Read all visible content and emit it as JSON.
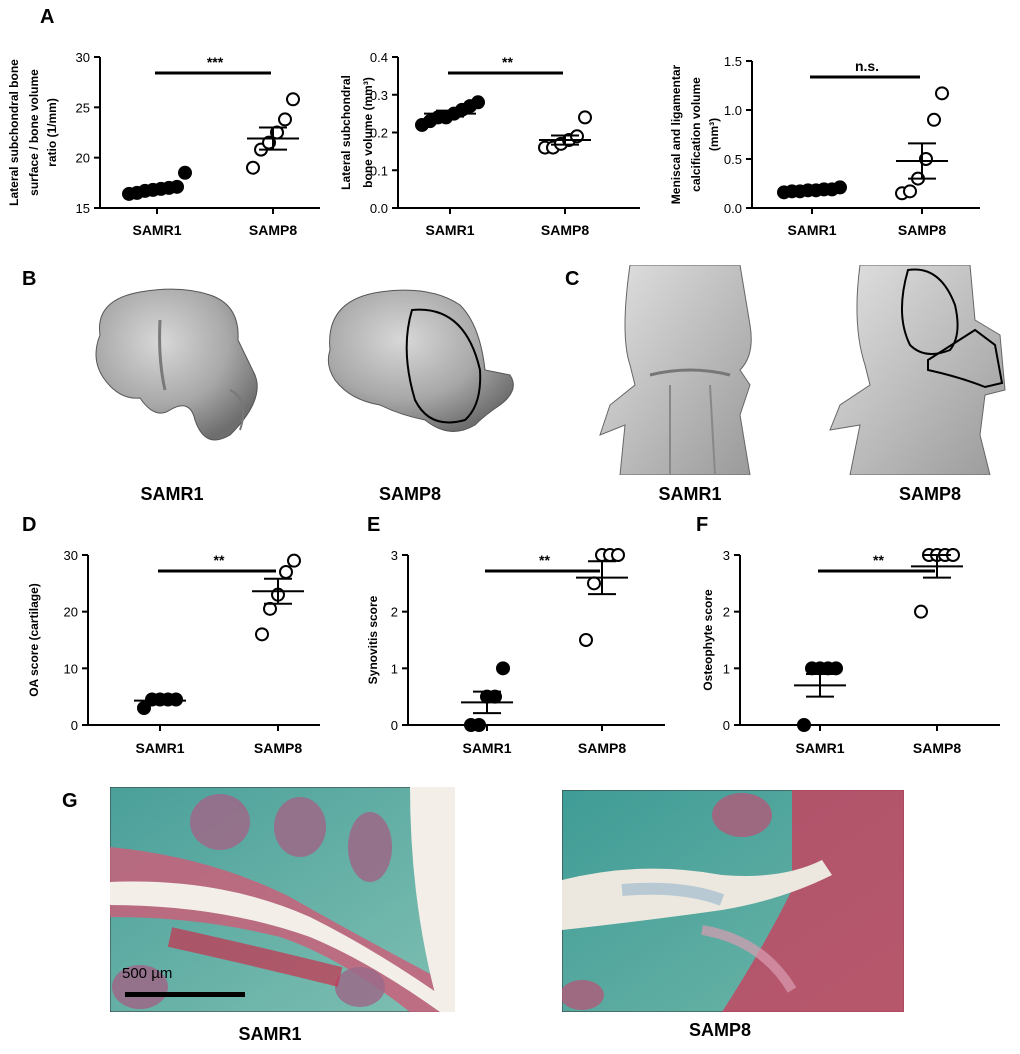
{
  "panel_letters": {
    "A": "A",
    "B": "B",
    "C": "C",
    "D": "D",
    "E": "E",
    "F": "F",
    "G": "G"
  },
  "image_captions": {
    "b_left": "SAMR1",
    "b_right": "SAMP8",
    "c_left": "SAMR1",
    "c_right": "SAMP8",
    "g_left": "SAMR1",
    "g_right": "SAMP8"
  },
  "scale_bar_label": "500 µm",
  "chart_data": [
    {
      "id": "A1",
      "type": "scatter",
      "categories": [
        "SAMR1",
        "SAMP8"
      ],
      "ylabel_lines": [
        "Lateral subchondral bone",
        "surface / bone volume",
        "ratio (1/mm)"
      ],
      "ylim": [
        15,
        30
      ],
      "yticks": [
        15,
        20,
        25,
        30
      ],
      "points": [
        [
          16.4,
          16.5,
          16.7,
          16.8,
          16.9,
          17.0,
          17.1,
          18.5
        ],
        [
          19.0,
          20.8,
          21.5,
          22.5,
          23.8,
          25.8
        ]
      ],
      "mean": [
        16.9,
        21.9
      ],
      "sem": [
        0.25,
        1.1
      ],
      "significance": "***"
    },
    {
      "id": "A2",
      "type": "scatter",
      "categories": [
        "SAMR1",
        "SAMP8"
      ],
      "ylabel_lines": [
        "Lateral subchondral",
        "bone volume (mm³)"
      ],
      "ylim": [
        0,
        0.4
      ],
      "yticks": [
        0.0,
        0.1,
        0.2,
        0.3,
        0.4
      ],
      "points": [
        [
          0.22,
          0.23,
          0.24,
          0.24,
          0.25,
          0.26,
          0.27,
          0.28
        ],
        [
          0.16,
          0.16,
          0.17,
          0.18,
          0.19,
          0.24
        ]
      ],
      "mean": [
        0.25,
        0.18
      ],
      "sem": [
        0.008,
        0.012
      ],
      "significance": "**"
    },
    {
      "id": "A3",
      "type": "scatter",
      "categories": [
        "SAMR1",
        "SAMP8"
      ],
      "ylabel_lines": [
        "Meniscal and ligamentar",
        "calcification volume",
        "(mm³)"
      ],
      "ylim": [
        0,
        1.5
      ],
      "yticks": [
        0.0,
        0.5,
        1.0,
        1.5
      ],
      "points": [
        [
          0.16,
          0.17,
          0.17,
          0.18,
          0.18,
          0.19,
          0.19,
          0.21
        ],
        [
          0.15,
          0.17,
          0.3,
          0.5,
          0.9,
          1.17
        ]
      ],
      "mean": [
        0.18,
        0.48
      ],
      "sem": [
        0.01,
        0.18
      ],
      "significance": "n.s."
    },
    {
      "id": "D",
      "type": "scatter",
      "categories": [
        "SAMR1",
        "SAMP8"
      ],
      "ylabel_lines": [
        "OA score (cartilage)"
      ],
      "ylim": [
        0,
        30
      ],
      "yticks": [
        0,
        10,
        20,
        30
      ],
      "points": [
        [
          3.0,
          4.5,
          4.5,
          4.5,
          4.5
        ],
        [
          16.0,
          20.5,
          23.0,
          27.0,
          29.0
        ]
      ],
      "mean": [
        4.3,
        23.6
      ],
      "sem": [
        0.3,
        2.2
      ],
      "significance": "**"
    },
    {
      "id": "E",
      "type": "scatter",
      "categories": [
        "SAMR1",
        "SAMP8"
      ],
      "ylabel_lines": [
        "Synovitis score"
      ],
      "ylim": [
        0,
        3
      ],
      "yticks": [
        0,
        1,
        2,
        3
      ],
      "points": [
        [
          0,
          0,
          0.5,
          0.5,
          1.0
        ],
        [
          1.5,
          2.5,
          3.0,
          3.0,
          3.0
        ]
      ],
      "mean": [
        0.4,
        2.6
      ],
      "sem": [
        0.19,
        0.29
      ],
      "significance": "**"
    },
    {
      "id": "F",
      "type": "scatter",
      "categories": [
        "SAMR1",
        "SAMP8"
      ],
      "ylabel_lines": [
        "Osteophyte score"
      ],
      "ylim": [
        0,
        3
      ],
      "yticks": [
        0,
        1,
        2,
        3
      ],
      "points": [
        [
          0,
          1,
          1,
          1,
          1
        ],
        [
          2,
          3,
          3,
          3,
          3
        ]
      ],
      "mean": [
        0.7,
        2.8
      ],
      "sem": [
        0.2,
        0.2
      ],
      "significance": "**"
    }
  ],
  "marker_fill": [
    "#000000",
    "#ffffff"
  ]
}
